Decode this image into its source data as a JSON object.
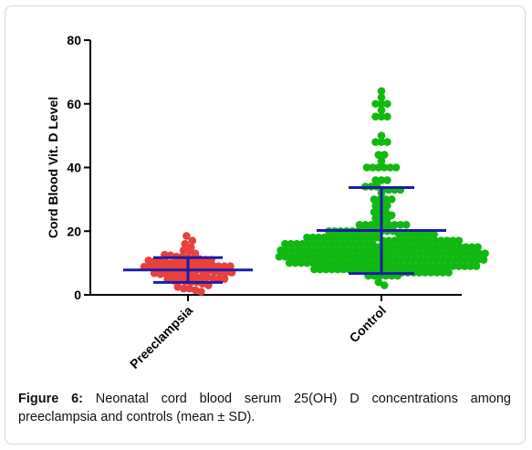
{
  "colors": {
    "preeclampsia": "#e8403c",
    "control": "#12b812",
    "stat": "#1c1ca8",
    "axis": "#000000"
  },
  "caption": {
    "label": "Figure 6:",
    "text": "Neonatal cord blood serum 25(OH) D concentrations among preeclampsia and controls (mean ± SD)."
  },
  "chart_data": {
    "type": "scatter",
    "title": "",
    "xlabel": "",
    "ylabel": "Cord Blood Vit.  D Level",
    "ylim": [
      0,
      80
    ],
    "yticks": [
      0,
      20,
      40,
      60,
      80
    ],
    "categories": [
      "Preeclampsia",
      "Control"
    ],
    "series": [
      {
        "name": "Preeclampsia",
        "mean": 7.8,
        "sd": 3.9,
        "values": [
          18.5,
          17,
          16,
          15,
          14,
          13.8,
          13,
          12.6,
          12.4,
          12,
          12,
          11.8,
          11.5,
          11.2,
          11,
          11,
          10.8,
          10.5,
          10.5,
          10.2,
          10,
          10,
          10,
          9.8,
          9.8,
          9.5,
          9.5,
          9.2,
          9,
          9,
          9,
          8.8,
          8.8,
          8.5,
          8.5,
          8.2,
          8,
          8,
          8,
          7.8,
          7.8,
          7.5,
          7.5,
          7.2,
          7,
          7,
          7,
          6.8,
          6.5,
          6.5,
          6.2,
          6,
          6,
          6,
          5.8,
          5.5,
          5.5,
          5.2,
          5,
          5,
          4.8,
          4.5,
          4.5,
          4.2,
          4,
          4,
          3.5,
          3,
          2.5,
          2,
          2,
          1.5,
          1
        ]
      },
      {
        "name": "Control",
        "mean": 20.2,
        "sd": 13.5,
        "values": [
          64,
          62,
          60,
          60,
          60,
          58,
          56,
          56,
          56,
          50,
          48,
          48,
          48,
          44,
          44,
          42,
          40,
          40,
          40,
          40,
          40,
          40,
          36,
          36,
          36,
          34,
          34,
          34,
          33,
          33,
          33,
          33,
          32,
          30,
          30,
          30,
          30,
          28,
          28,
          28,
          26,
          26,
          26,
          25,
          24,
          24,
          24,
          22,
          22,
          22,
          22,
          22,
          22,
          22,
          22,
          22,
          20,
          20,
          20,
          20,
          20,
          20,
          20,
          20,
          20,
          20,
          20,
          20,
          19,
          19,
          19,
          19,
          19,
          19,
          19,
          18,
          18,
          18,
          18,
          18,
          18,
          18,
          18,
          18,
          18,
          18,
          18,
          18,
          17,
          17,
          17,
          17,
          17,
          17,
          17,
          17,
          17,
          17,
          17,
          17,
          17,
          17,
          16,
          16,
          16,
          16,
          16,
          16,
          16,
          16,
          16,
          16,
          16,
          16,
          16,
          16,
          16,
          16,
          15,
          15,
          15,
          15,
          15,
          15,
          15,
          15,
          15,
          15,
          15,
          15,
          15,
          15,
          15,
          15,
          15,
          15,
          14,
          14,
          14,
          14,
          14,
          14,
          14,
          14,
          14,
          14,
          14,
          14,
          14,
          14,
          14,
          14,
          14,
          14,
          13,
          13,
          13,
          13,
          13,
          13,
          13,
          13,
          13,
          13,
          13,
          13,
          13,
          13,
          13,
          13,
          13,
          13,
          12,
          12,
          12,
          12,
          12,
          12,
          12,
          12,
          12,
          12,
          12,
          12,
          12,
          12,
          12,
          12,
          12,
          12,
          11,
          11,
          11,
          11,
          11,
          11,
          11,
          11,
          11,
          11,
          11,
          11,
          11,
          11,
          11,
          11,
          11,
          11,
          10,
          10,
          10,
          10,
          10,
          10,
          10,
          10,
          10,
          10,
          10,
          10,
          10,
          10,
          10,
          10,
          10,
          10,
          9,
          9,
          9,
          9,
          9,
          9,
          9,
          9,
          9,
          9,
          9,
          9,
          9,
          9,
          9,
          8,
          8,
          8,
          8,
          8,
          8,
          8,
          8,
          8,
          8,
          8,
          8,
          8,
          8,
          7,
          7,
          7,
          7,
          7,
          7,
          7,
          7,
          7,
          7,
          6,
          6,
          6,
          6,
          6,
          6,
          4,
          3
        ]
      }
    ]
  }
}
